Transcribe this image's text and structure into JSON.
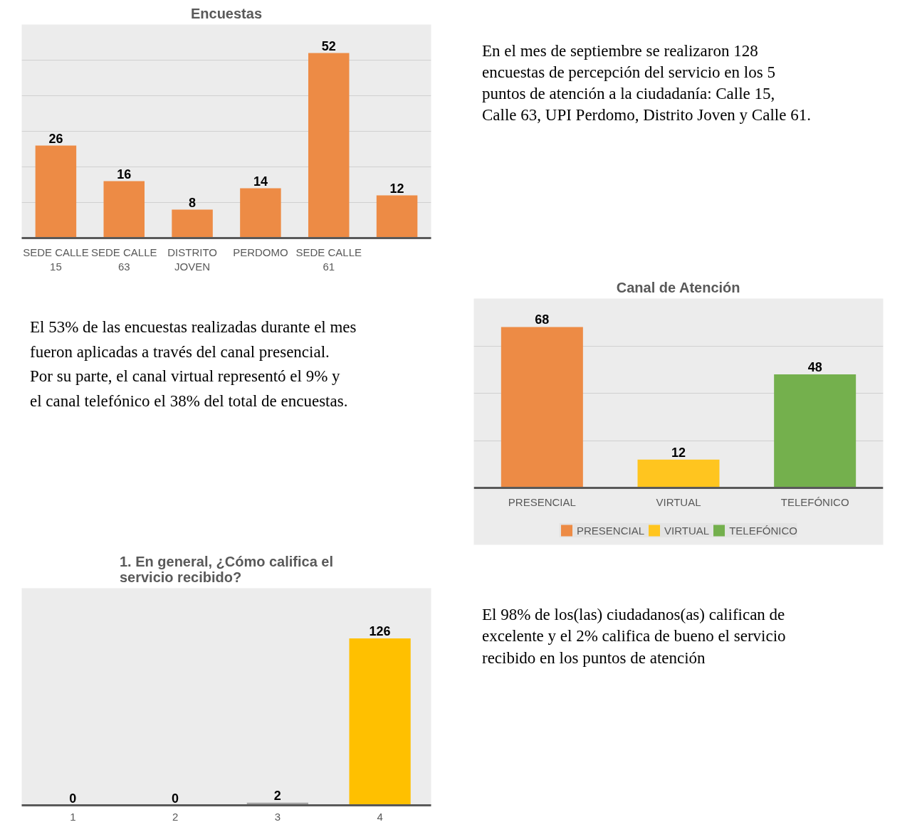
{
  "chart_data": [
    {
      "type": "bar",
      "title": "Encuestas",
      "categories": [
        "SEDE CALLE 15",
        "SEDE CALLE 63",
        "DISTRITO JOVEN",
        "PERDOMO",
        "SEDE CALLE 61",
        null
      ],
      "values": [
        26,
        16,
        8,
        14,
        52,
        12
      ],
      "color": "#ed8b45",
      "data_labels": true,
      "ylim": [
        0,
        60
      ],
      "yticks": [
        {
          "value": 10,
          "label": null
        },
        {
          "value": 20,
          "label": null
        },
        {
          "value": 30,
          "label": null
        },
        {
          "value": 40,
          "label": null
        },
        {
          "value": 50,
          "label": null
        },
        {
          "value": 60,
          "label": null
        }
      ],
      "grid": "y",
      "tick_labels": "x"
    },
    {
      "type": "other",
      "annotations": [
        "En el mes de septiembre se realizaron 128 encuestas de percepción del servicio en los 5 puntos de atención a la ciudadanía: Calle 15, Calle 63, UPI Perdomo, Distrito Joven y Calle 61."
      ]
    },
    {
      "type": "other",
      "annotations": [
        "El 53% de las encuestas realizadas durante el mes fueron aplicadas a través del canal presencial. Por su parte, el canal virtual representó el 9% y el canal telefónico el 38% del total de encuestas."
      ]
    },
    {
      "type": "bar",
      "title": "Canal de Atención",
      "categories": [
        "PRESENCIAL",
        "VIRTUAL",
        "TELEFÓNICO"
      ],
      "series": [
        {
          "name": "PRESENCIAL",
          "color": "#ed8b45",
          "values": [
            68,
            null,
            null
          ]
        },
        {
          "name": "VIRTUAL",
          "color": "#ffc51f",
          "values": [
            null,
            12,
            null
          ]
        },
        {
          "name": "TELEFÓNICO",
          "color": "#74b04d",
          "values": [
            null,
            null,
            48
          ]
        }
      ],
      "data_labels": true,
      "ylim": [
        0,
        80
      ],
      "yticks": [
        {
          "value": 20,
          "label": null
        },
        {
          "value": 40,
          "label": null
        },
        {
          "value": 60,
          "label": null
        },
        {
          "value": 80,
          "label": null
        }
      ],
      "grid": "y",
      "tick_labels": "x",
      "legend": "bottom"
    },
    {
      "type": "bar",
      "title": "1. En general, ¿Cómo califica el servicio recibido?",
      "categories": [
        "1",
        "2",
        "3",
        "4"
      ],
      "values": [
        0,
        0,
        2,
        126
      ],
      "colors": [
        "#4472c4",
        "#ed7d31",
        "#a5a5a5",
        "#ffc000"
      ],
      "data_labels": true,
      "tick_labels": "x"
    },
    {
      "type": "other",
      "annotations": [
        "El 98% de los(las) ciudadanos(as) califican de excelente y el 2% califica de bueno el servicio recibido en los puntos de atención"
      ]
    }
  ]
}
